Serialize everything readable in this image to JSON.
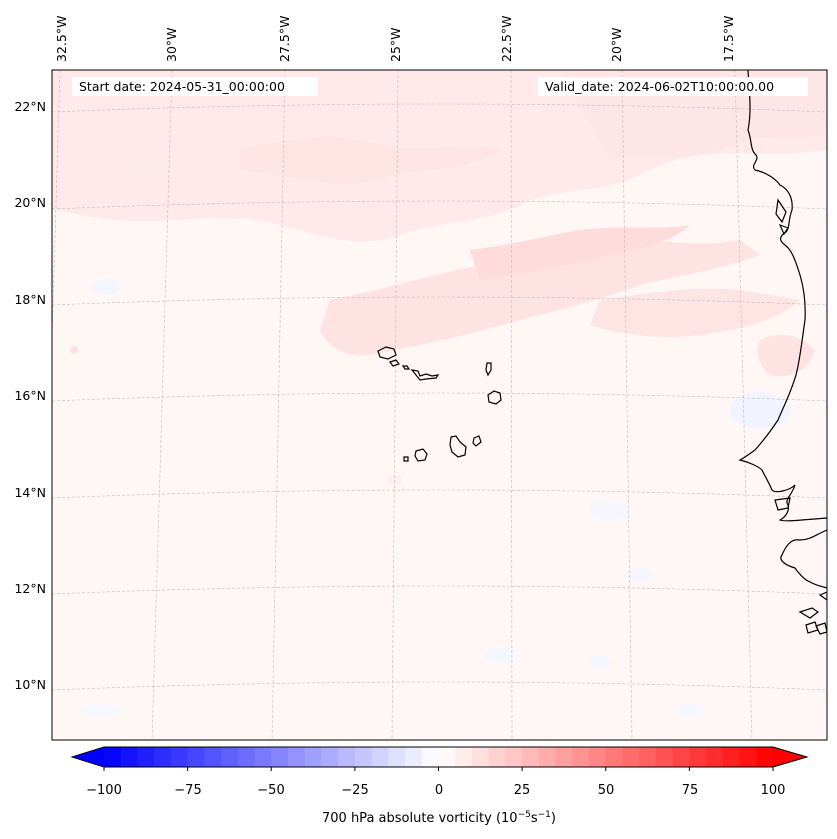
{
  "map": {
    "start_date_label": "Start date: 2024-05-31_00:00:00",
    "valid_date_label": "Valid_date: 2024-06-02T10:00:00.00",
    "lon_labels": [
      "32.5°W",
      "30°W",
      "27.5°W",
      "25°W",
      "22.5°W",
      "20°W",
      "17.5°W"
    ],
    "lat_labels": [
      "22°N",
      "20°N",
      "18°N",
      "16°N",
      "14°N",
      "12°N",
      "10°N"
    ],
    "coastline_color": "#000000",
    "gridline_color": "#bbbbbb"
  },
  "colorbar": {
    "title_main": "700 hPa absolute vorticity (10",
    "title_exp1": "−5",
    "title_mid": "s",
    "title_exp2": "−1",
    "title_end": ")",
    "tick_labels": [
      "−100",
      "−75",
      "−50",
      "−25",
      "0",
      "25",
      "50",
      "75",
      "100"
    ],
    "min": -100,
    "max": 100,
    "step": 5,
    "colors": {
      "negative": "#0000ff",
      "zero": "#ffffff",
      "positive": "#ff0000"
    }
  }
}
